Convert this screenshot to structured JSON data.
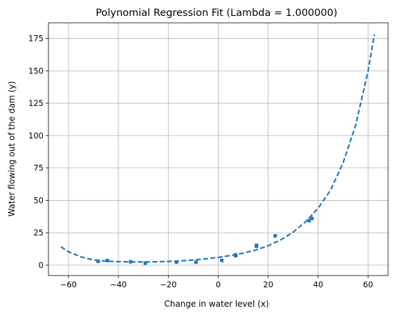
{
  "chart_data": {
    "type": "scatter",
    "title": "Polynomial Regression Fit (Lambda = 1.000000)",
    "xlabel": "Change in water level (x)",
    "ylabel": "Water flowing out of the dam (y)",
    "xlim": [
      -68,
      68
    ],
    "ylim": [
      -8,
      187
    ],
    "xticks": [
      -60,
      -40,
      -20,
      0,
      20,
      40,
      60
    ],
    "yticks": [
      0,
      25,
      50,
      75,
      100,
      125,
      150,
      175
    ],
    "grid": true,
    "color": "#1f77b4",
    "series": [
      {
        "kind": "scatter",
        "points": [
          [
            -48.1,
            3.0
          ],
          [
            -44.4,
            3.6
          ],
          [
            -35.1,
            2.6
          ],
          [
            -29.2,
            1.6
          ],
          [
            -16.7,
            2.4
          ],
          [
            -8.9,
            2.3
          ],
          [
            1.4,
            3.7
          ],
          [
            6.9,
            8.0
          ],
          [
            7.0,
            7.3
          ],
          [
            15.3,
            14.6
          ],
          [
            15.3,
            15.3
          ],
          [
            22.8,
            22.6
          ],
          [
            36.4,
            34.4
          ],
          [
            37.5,
            36.1
          ]
        ]
      },
      {
        "kind": "fit",
        "style": "dashed",
        "points": [
          [
            -63,
            14.2
          ],
          [
            -60,
            10.4
          ],
          [
            -55,
            6.4
          ],
          [
            -50,
            4.1
          ],
          [
            -45,
            3.1
          ],
          [
            -40,
            2.7
          ],
          [
            -35,
            2.6
          ],
          [
            -30,
            2.5
          ],
          [
            -25,
            2.6
          ],
          [
            -20,
            2.9
          ],
          [
            -15,
            3.3
          ],
          [
            -10,
            4.0
          ],
          [
            -5,
            4.9
          ],
          [
            0,
            6.0
          ],
          [
            5,
            7.5
          ],
          [
            10,
            9.3
          ],
          [
            15,
            11.7
          ],
          [
            20,
            15.0
          ],
          [
            25,
            19.5
          ],
          [
            30,
            25.5
          ],
          [
            35,
            33.5
          ],
          [
            40,
            44.0
          ],
          [
            45,
            58.0
          ],
          [
            50,
            79.0
          ],
          [
            55,
            108.0
          ],
          [
            58,
            133.0
          ],
          [
            60,
            150.0
          ],
          [
            62.5,
            178.0
          ]
        ]
      }
    ]
  }
}
